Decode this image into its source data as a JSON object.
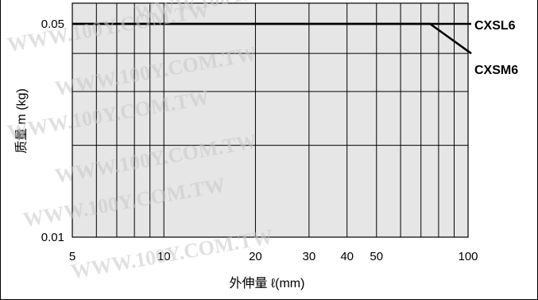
{
  "chart_data": {
    "type": "line",
    "title": "",
    "xlabel": "外伸量 ℓ(mm)",
    "ylabel": "质量 m (kg)",
    "x_scale": "log",
    "y_scale": "log",
    "xlim": [
      5,
      100
    ],
    "ylim": [
      0.01,
      0.05
    ],
    "x_ticks": [
      5,
      10,
      20,
      30,
      40,
      50,
      100
    ],
    "x_tick_labels": [
      "5",
      "10",
      "20",
      "30",
      "40",
      "50",
      "100"
    ],
    "y_ticks": [
      0.01,
      0.05
    ],
    "y_tick_labels": [
      "0.01",
      "0.05"
    ],
    "x_gridlines": [
      5,
      6,
      7,
      8,
      9,
      10,
      20,
      30,
      40,
      50,
      60,
      70,
      80,
      90,
      100
    ],
    "y_gridlines": [
      0.01,
      0.02,
      0.03,
      0.04,
      0.05
    ],
    "grid": true,
    "colors": {
      "plot_background": "#e6e6e6",
      "grid": "#000000",
      "line": "#000000"
    },
    "series": [
      {
        "name": "CXSL6",
        "x": [
          5,
          100
        ],
        "y": [
          0.05,
          0.05
        ]
      },
      {
        "name": "CXSM6",
        "x": [
          5,
          75,
          100
        ],
        "y": [
          0.05,
          0.05,
          0.04
        ]
      }
    ],
    "watermark": "WWW.100Y.COM.TW"
  }
}
